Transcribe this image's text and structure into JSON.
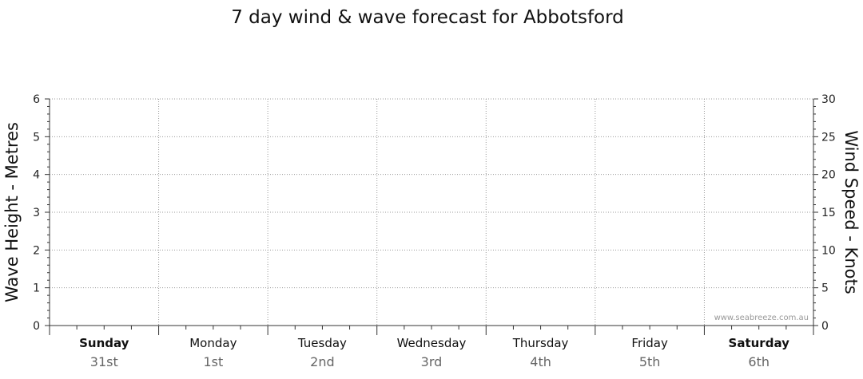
{
  "chart_data": {
    "type": "line",
    "title": "7 day wind & wave forecast for Abbotsford",
    "ylabel_left": "Wave Height - Metres",
    "ylabel_right": "Wind Speed - Knots",
    "ylim_left": [
      0,
      6
    ],
    "ylim_right": [
      0,
      30
    ],
    "yticks_left": [
      "0",
      "1",
      "2",
      "3",
      "4",
      "5",
      "6"
    ],
    "yticks_right": [
      "0",
      "5",
      "10",
      "15",
      "20",
      "25",
      "30"
    ],
    "days": [
      {
        "name": "Sunday",
        "date": "31st",
        "bold": true
      },
      {
        "name": "Monday",
        "date": "1st",
        "bold": false
      },
      {
        "name": "Tuesday",
        "date": "2nd",
        "bold": false
      },
      {
        "name": "Wednesday",
        "date": "3rd",
        "bold": false
      },
      {
        "name": "Thursday",
        "date": "4th",
        "bold": false
      },
      {
        "name": "Friday",
        "date": "5th",
        "bold": false
      },
      {
        "name": "Saturday",
        "date": "6th",
        "bold": true
      }
    ],
    "series": [],
    "grid": true,
    "credit": "www.seabreeze.com.au"
  }
}
